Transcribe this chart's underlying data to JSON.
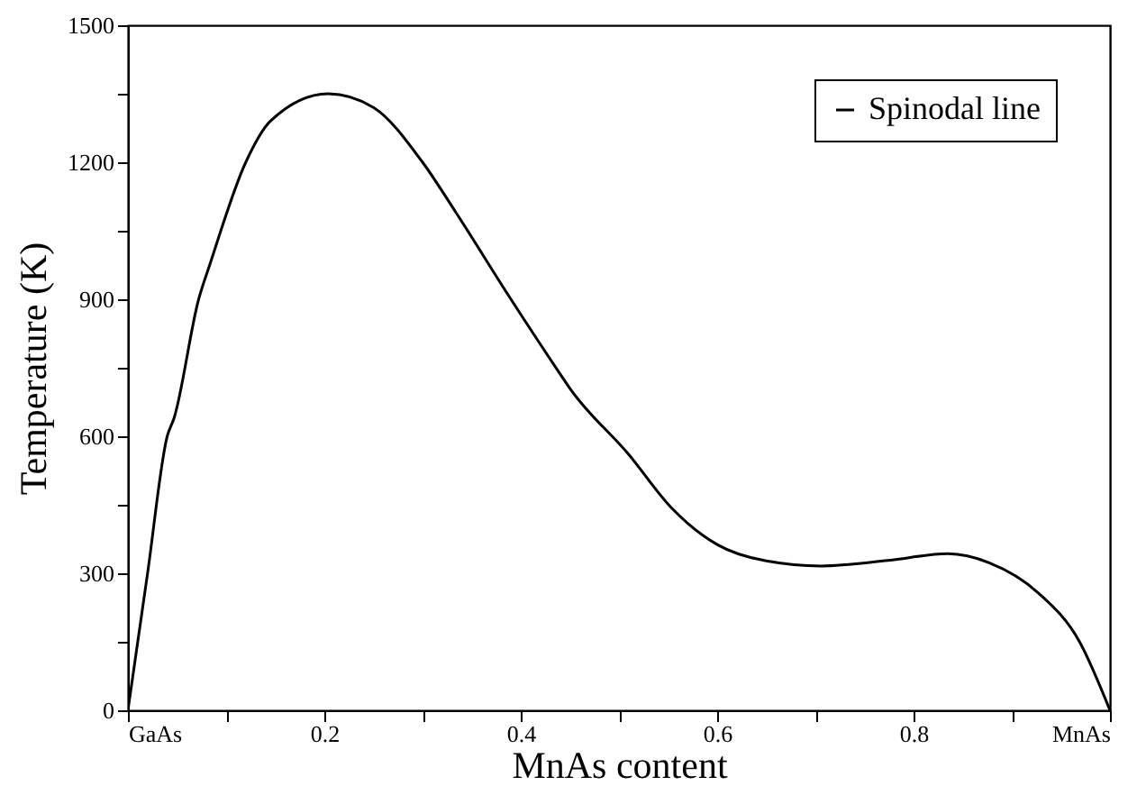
{
  "chart_data": {
    "type": "line",
    "xlabel": "MnAs content",
    "ylabel": "Temperature (K)",
    "x": [
      0,
      0.017,
      0.02,
      0.04,
      0.047,
      0.072,
      0.084,
      0.12,
      0.145,
      0.204,
      0.25,
      0.3,
      0.334,
      0.39,
      0.439,
      0.45,
      0.51,
      0.554,
      0.6,
      0.65,
      0.706,
      0.774,
      0.835,
      0.877,
      0.927,
      0.969,
      1
    ],
    "series": [
      {
        "name": "Spinodal line",
        "color": "#000000",
        "values": [
          0,
          255,
          300,
          600,
          640,
          900,
          980,
          1200,
          1290,
          1350,
          1320,
          1200,
          1090,
          900,
          740,
          705,
          560,
          442,
          363,
          327,
          316,
          328,
          343,
          323,
          257,
          150,
          0
        ]
      }
    ],
    "xlim": [
      0,
      1
    ],
    "xticks": [
      {
        "value": 0,
        "label": "GaAs"
      },
      {
        "value": 0.1,
        "label": null
      },
      0.2,
      {
        "value": 0.3,
        "label": null
      },
      0.4,
      {
        "value": 0.5,
        "label": null
      },
      0.6,
      {
        "value": 0.7,
        "label": null
      },
      0.8,
      {
        "value": 0.9,
        "label": null
      },
      {
        "value": 1,
        "label": "MnAs"
      }
    ],
    "ylim": [
      0,
      1500
    ],
    "yticks": [
      0,
      {
        "value": 150,
        "label": null
      },
      300,
      {
        "value": 450,
        "label": null
      },
      600,
      {
        "value": 750,
        "label": null
      },
      900,
      {
        "value": 1050,
        "label": null
      },
      1200,
      {
        "value": 1350,
        "label": null
      },
      1500
    ],
    "legend": "top right",
    "grid": false,
    "marker": "none",
    "line_style": "solid"
  }
}
